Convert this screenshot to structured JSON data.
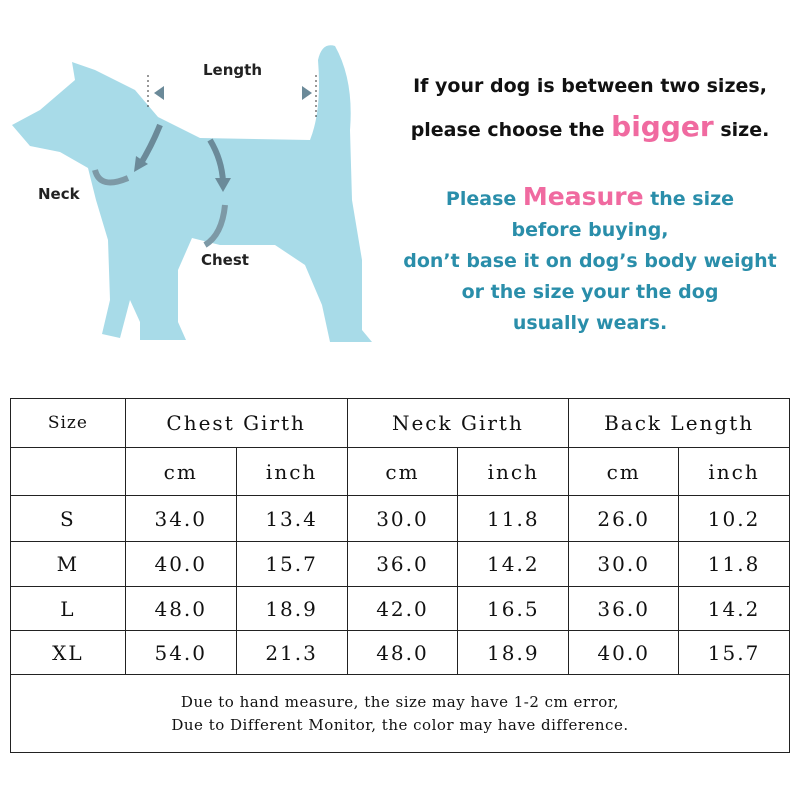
{
  "diagram": {
    "labels": {
      "length": "Length",
      "neck": "Neck",
      "chest": "Chest"
    },
    "colors": {
      "dog": "#a8dbe8",
      "arrow": "#6b8a99"
    }
  },
  "notice": {
    "line1": "If your dog is between two sizes,",
    "line2_pre": "please choose the",
    "line2_highlight": "bigger",
    "line2_post": "size.",
    "measure_pre": "Please",
    "measure_highlight": "Measure",
    "measure_post": "the size",
    "line4": "before buying,",
    "line5": "don’t base it on dog’s body weight",
    "line6": "or the size your the dog",
    "line7": "usually wears.",
    "colors": {
      "highlight": "#f06aa0",
      "teal": "#2a8eaa"
    }
  },
  "table": {
    "size_header": "Size",
    "groups": [
      "Chest Girth",
      "Neck Girth",
      "Back Length"
    ],
    "units": [
      "cm",
      "inch",
      "cm",
      "inch",
      "cm",
      "inch"
    ],
    "rows": [
      {
        "size": "S",
        "values": [
          "34.0",
          "13.4",
          "30.0",
          "11.8",
          "26.0",
          "10.2"
        ]
      },
      {
        "size": "M",
        "values": [
          "40.0",
          "15.7",
          "36.0",
          "14.2",
          "30.0",
          "11.8"
        ]
      },
      {
        "size": "L",
        "values": [
          "48.0",
          "18.9",
          "42.0",
          "16.5",
          "36.0",
          "14.2"
        ]
      },
      {
        "size": "XL",
        "values": [
          "54.0",
          "21.3",
          "48.0",
          "18.9",
          "40.0",
          "15.7"
        ]
      }
    ],
    "note1": "Due to hand measure, the size may have 1-2 cm error,",
    "note2": "Due to Different Monitor, the color may have difference."
  }
}
